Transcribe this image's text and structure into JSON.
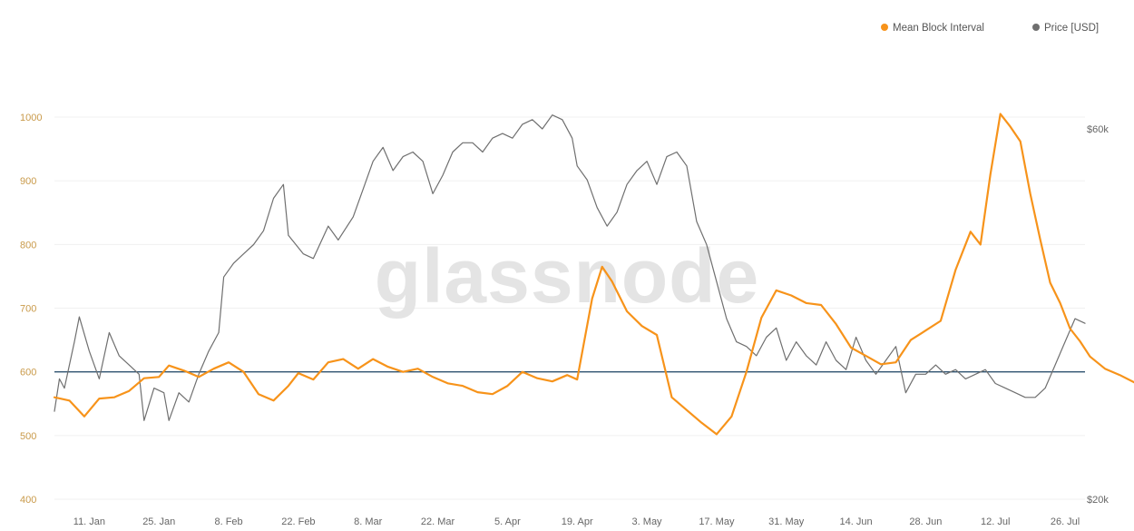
{
  "watermark": "glassnode",
  "chart_data": {
    "type": "line",
    "x_axis": {
      "ticks": [
        "11. Jan",
        "25. Jan",
        "8. Feb",
        "22. Feb",
        "8. Mar",
        "22. Mar",
        "5. Apr",
        "19. Apr",
        "3. May",
        "17. May",
        "31. May",
        "14. Jun",
        "28. Jun",
        "12. Jul",
        "26. Jul"
      ],
      "tick_day_index": [
        7,
        21,
        35,
        49,
        63,
        77,
        91,
        105,
        119,
        133,
        147,
        161,
        175,
        189,
        203
      ],
      "xlim_day_index": [
        0,
        207
      ]
    },
    "y_left": {
      "ticks": [
        "400",
        "500",
        "600",
        "700",
        "800",
        "900",
        "1000"
      ],
      "ylim": [
        400,
        1020
      ],
      "color": "#c99a4a"
    },
    "y_right": {
      "ticks": [
        "$20k",
        "$60k"
      ],
      "ylim_usd": [
        20000,
        70000
      ]
    },
    "legend": {
      "position": "top-right",
      "items": [
        {
          "label": "Mean Block Interval",
          "color": "#f7931a"
        },
        {
          "label": "Price [USD]",
          "color": "#6f6f6f"
        }
      ]
    },
    "reference_line": {
      "value": 600,
      "axis": "left",
      "color": "#2f5370"
    },
    "grid": true,
    "series": [
      {
        "name": "Mean Block Interval",
        "axis": "left",
        "color": "#f7931a",
        "points": [
          [
            0,
            560
          ],
          [
            3,
            555
          ],
          [
            6,
            530
          ],
          [
            9,
            558
          ],
          [
            12,
            560
          ],
          [
            15,
            570
          ],
          [
            18,
            590
          ],
          [
            21,
            592
          ],
          [
            23,
            610
          ],
          [
            26,
            602
          ],
          [
            29,
            592
          ],
          [
            32,
            605
          ],
          [
            35,
            615
          ],
          [
            38,
            600
          ],
          [
            41,
            565
          ],
          [
            44,
            555
          ],
          [
            47,
            578
          ],
          [
            49,
            598
          ],
          [
            52,
            588
          ],
          [
            55,
            615
          ],
          [
            58,
            620
          ],
          [
            61,
            605
          ],
          [
            64,
            620
          ],
          [
            67,
            608
          ],
          [
            70,
            600
          ],
          [
            73,
            605
          ],
          [
            76,
            592
          ],
          [
            79,
            582
          ],
          [
            82,
            578
          ],
          [
            85,
            568
          ],
          [
            88,
            565
          ],
          [
            91,
            578
          ],
          [
            94,
            600
          ],
          [
            97,
            590
          ],
          [
            100,
            585
          ],
          [
            103,
            595
          ],
          [
            105,
            588
          ],
          [
            108,
            715
          ],
          [
            110,
            765
          ],
          [
            112,
            742
          ],
          [
            115,
            695
          ],
          [
            118,
            672
          ],
          [
            121,
            658
          ],
          [
            124,
            560
          ],
          [
            127,
            540
          ],
          [
            130,
            520
          ],
          [
            133,
            502
          ],
          [
            136,
            530
          ],
          [
            139,
            600
          ],
          [
            142,
            685
          ],
          [
            145,
            728
          ],
          [
            148,
            720
          ],
          [
            151,
            708
          ],
          [
            154,
            705
          ],
          [
            157,
            675
          ],
          [
            160,
            638
          ],
          [
            163,
            625
          ],
          [
            166,
            612
          ],
          [
            169,
            615
          ],
          [
            172,
            650
          ],
          [
            175,
            665
          ],
          [
            178,
            680
          ],
          [
            181,
            760
          ],
          [
            184,
            820
          ],
          [
            186,
            800
          ],
          [
            188,
            910
          ],
          [
            190,
            1005
          ],
          [
            192,
            985
          ],
          [
            194,
            962
          ],
          [
            196,
            880
          ],
          [
            198,
            808
          ],
          [
            200,
            740
          ],
          [
            202,
            708
          ],
          [
            204,
            668
          ],
          [
            206,
            648
          ],
          [
            208,
            624
          ],
          [
            211,
            605
          ],
          [
            214,
            595
          ],
          [
            217,
            583
          ],
          [
            220,
            570
          ],
          [
            223,
            556
          ]
        ]
      },
      {
        "name": "Price [USD]",
        "axis": "right",
        "color": "#6f6f6f",
        "points": [
          [
            0,
            29500
          ],
          [
            1,
            33000
          ],
          [
            2,
            32000
          ],
          [
            4,
            37000
          ],
          [
            5,
            39700
          ],
          [
            7,
            36000
          ],
          [
            9,
            33000
          ],
          [
            11,
            38000
          ],
          [
            13,
            35500
          ],
          [
            15,
            34500
          ],
          [
            17,
            33500
          ],
          [
            18,
            28500
          ],
          [
            20,
            32000
          ],
          [
            22,
            31500
          ],
          [
            23,
            28500
          ],
          [
            25,
            31500
          ],
          [
            27,
            30500
          ],
          [
            29,
            33500
          ],
          [
            31,
            36000
          ],
          [
            33,
            38000
          ],
          [
            34,
            44000
          ],
          [
            36,
            45500
          ],
          [
            38,
            46500
          ],
          [
            40,
            47500
          ],
          [
            42,
            49000
          ],
          [
            44,
            52500
          ],
          [
            46,
            54000
          ],
          [
            47,
            48500
          ],
          [
            50,
            46500
          ],
          [
            52,
            46000
          ],
          [
            55,
            49500
          ],
          [
            57,
            48000
          ],
          [
            60,
            50500
          ],
          [
            62,
            53500
          ],
          [
            64,
            56500
          ],
          [
            66,
            58000
          ],
          [
            68,
            55500
          ],
          [
            70,
            57000
          ],
          [
            72,
            57500
          ],
          [
            74,
            56500
          ],
          [
            76,
            53000
          ],
          [
            78,
            55000
          ],
          [
            80,
            57500
          ],
          [
            82,
            58500
          ],
          [
            84,
            58500
          ],
          [
            86,
            57500
          ],
          [
            88,
            59000
          ],
          [
            90,
            59500
          ],
          [
            92,
            59000
          ],
          [
            94,
            60500
          ],
          [
            96,
            61000
          ],
          [
            98,
            60000
          ],
          [
            100,
            61500
          ],
          [
            102,
            61000
          ],
          [
            104,
            59000
          ],
          [
            105,
            56000
          ],
          [
            107,
            54500
          ],
          [
            109,
            51500
          ],
          [
            111,
            49500
          ],
          [
            113,
            51000
          ],
          [
            115,
            54000
          ],
          [
            117,
            55500
          ],
          [
            119,
            56500
          ],
          [
            121,
            54000
          ],
          [
            123,
            57000
          ],
          [
            125,
            57500
          ],
          [
            127,
            56000
          ],
          [
            129,
            50000
          ],
          [
            131,
            47500
          ],
          [
            133,
            43500
          ],
          [
            135,
            39500
          ],
          [
            137,
            37000
          ],
          [
            139,
            36500
          ],
          [
            141,
            35500
          ],
          [
            143,
            37500
          ],
          [
            145,
            38500
          ],
          [
            147,
            35000
          ],
          [
            149,
            37000
          ],
          [
            151,
            35500
          ],
          [
            153,
            34500
          ],
          [
            155,
            37000
          ],
          [
            157,
            35000
          ],
          [
            159,
            34000
          ],
          [
            161,
            37500
          ],
          [
            163,
            35000
          ],
          [
            165,
            33500
          ],
          [
            167,
            35000
          ],
          [
            169,
            36500
          ],
          [
            171,
            31500
          ],
          [
            173,
            33500
          ],
          [
            175,
            33500
          ],
          [
            177,
            34500
          ],
          [
            179,
            33500
          ],
          [
            181,
            34000
          ],
          [
            183,
            33000
          ],
          [
            185,
            33500
          ],
          [
            187,
            34000
          ],
          [
            189,
            32500
          ],
          [
            191,
            32000
          ],
          [
            193,
            31500
          ],
          [
            195,
            31000
          ],
          [
            197,
            31000
          ],
          [
            199,
            32000
          ],
          [
            201,
            34500
          ],
          [
            203,
            37000
          ],
          [
            205,
            39500
          ],
          [
            207,
            39000
          ]
        ]
      }
    ]
  }
}
